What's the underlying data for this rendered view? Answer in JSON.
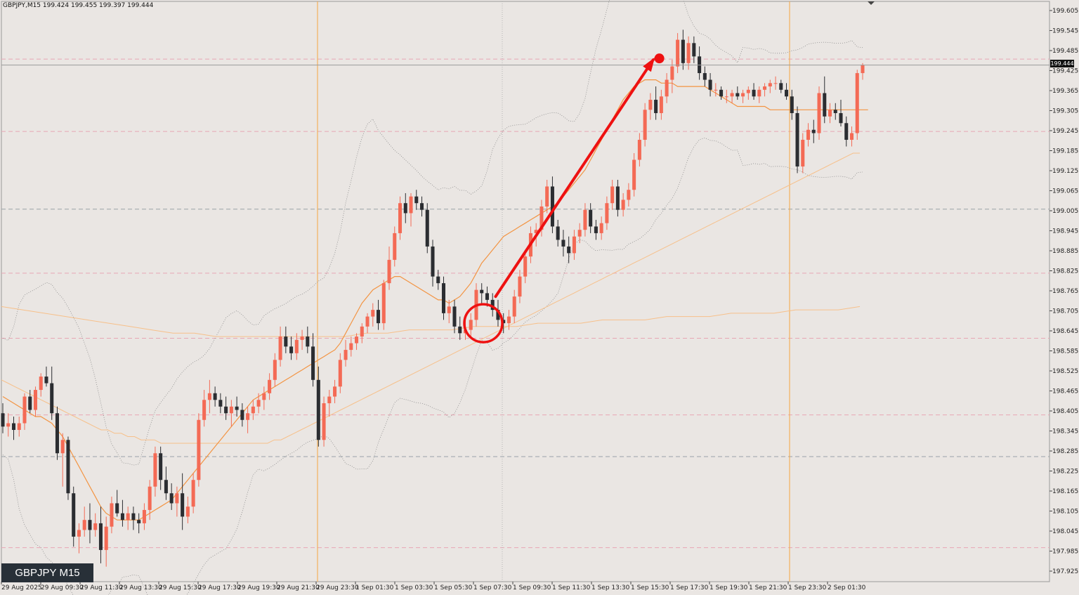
{
  "header": {
    "info": "GBPJPY,M15  199.424 199.455 199.397 199.444"
  },
  "badge": {
    "label": "GBPJPY M15"
  },
  "current_price": {
    "label": "199.444",
    "value": 199.444
  },
  "colors": {
    "background": "#eae6e3",
    "bull": "#f46a55",
    "bear": "#2b2d31",
    "ma_fast": "#f39442",
    "ma_slow": "#f7c08a",
    "bands": "#8a8a8a",
    "session_line": "#f5a742",
    "level_pink": "#e7a6b4",
    "level_gray": "#9aa3a8",
    "annotation": "#ee1111"
  },
  "chart_data": {
    "type": "candlestick",
    "symbol": "GBPJPY",
    "timeframe": "M15",
    "ylim": [
      197.895,
      199.635
    ],
    "y_ticks": [
      "199.605",
      "199.545",
      "199.485",
      "199.425",
      "199.365",
      "199.305",
      "199.245",
      "199.185",
      "199.125",
      "199.065",
      "199.005",
      "198.945",
      "198.885",
      "198.825",
      "198.765",
      "198.705",
      "198.645",
      "198.585",
      "198.525",
      "198.465",
      "198.405",
      "198.345",
      "198.285",
      "198.225",
      "198.165",
      "198.105",
      "198.045",
      "197.985",
      "197.925"
    ],
    "x_ticks": [
      "29 Aug 2025",
      "29 Aug 09:30",
      "29 Aug 11:30",
      "29 Aug 13:30",
      "29 Aug 15:30",
      "29 Aug 17:30",
      "29 Aug 19:30",
      "29 Aug 21:30",
      "29 Aug 23:30",
      "1 Sep 01:30",
      "1 Sep 03:30",
      "1 Sep 05:30",
      "1 Sep 07:30",
      "1 Sep 09:30",
      "1 Sep 11:30",
      "1 Sep 13:30",
      "1 Sep 15:30",
      "1 Sep 17:30",
      "1 Sep 19:30",
      "1 Sep 21:30",
      "1 Sep 23:30",
      "2 Sep 01:30"
    ],
    "candles": [
      [
        198.4,
        198.43,
        198.34,
        198.36
      ],
      [
        198.36,
        198.4,
        198.33,
        198.37
      ],
      [
        198.37,
        198.39,
        198.32,
        198.35
      ],
      [
        198.35,
        198.39,
        198.33,
        198.37
      ],
      [
        198.37,
        198.46,
        198.35,
        198.45
      ],
      [
        198.45,
        198.47,
        198.4,
        198.41
      ],
      [
        198.41,
        198.48,
        198.39,
        198.47
      ],
      [
        198.47,
        198.52,
        198.45,
        198.51
      ],
      [
        198.51,
        198.54,
        198.48,
        198.49
      ],
      [
        198.49,
        198.54,
        198.38,
        198.4
      ],
      [
        198.4,
        198.42,
        198.26,
        198.28
      ],
      [
        198.28,
        198.34,
        198.18,
        198.32
      ],
      [
        198.32,
        198.33,
        198.14,
        198.16
      ],
      [
        198.16,
        198.18,
        198.0,
        198.03
      ],
      [
        198.03,
        198.07,
        197.98,
        198.05
      ],
      [
        198.05,
        198.12,
        198.03,
        198.08
      ],
      [
        198.08,
        198.13,
        198.01,
        198.05
      ],
      [
        198.05,
        198.1,
        198.03,
        198.07
      ],
      [
        198.07,
        198.12,
        197.95,
        197.99
      ],
      [
        197.99,
        198.09,
        197.94,
        198.06
      ],
      [
        198.06,
        198.15,
        198.04,
        198.13
      ],
      [
        198.13,
        198.17,
        198.09,
        198.1
      ],
      [
        198.1,
        198.14,
        198.06,
        198.08
      ],
      [
        198.08,
        198.12,
        198.05,
        198.1
      ],
      [
        198.1,
        198.12,
        198.05,
        198.08
      ],
      [
        198.08,
        198.1,
        198.04,
        198.07
      ],
      [
        198.07,
        198.13,
        198.05,
        198.11
      ],
      [
        198.11,
        198.2,
        198.08,
        198.18
      ],
      [
        198.18,
        198.3,
        198.15,
        198.28
      ],
      [
        198.28,
        198.3,
        198.17,
        198.2
      ],
      [
        198.2,
        198.24,
        198.14,
        198.16
      ],
      [
        198.16,
        198.19,
        198.11,
        198.13
      ],
      [
        198.13,
        198.18,
        198.09,
        198.16
      ],
      [
        198.16,
        198.22,
        198.05,
        198.09
      ],
      [
        198.09,
        198.15,
        198.07,
        198.12
      ],
      [
        198.12,
        198.22,
        198.1,
        198.2
      ],
      [
        198.2,
        198.4,
        198.18,
        198.38
      ],
      [
        198.38,
        198.47,
        198.36,
        198.44
      ],
      [
        198.44,
        198.5,
        198.4,
        198.46
      ],
      [
        198.46,
        198.48,
        198.42,
        198.44
      ],
      [
        198.44,
        198.46,
        198.4,
        198.42
      ],
      [
        198.42,
        198.45,
        198.38,
        198.4
      ],
      [
        198.4,
        198.44,
        198.36,
        198.42
      ],
      [
        198.42,
        198.45,
        198.39,
        198.41
      ],
      [
        198.41,
        198.43,
        198.36,
        198.38
      ],
      [
        198.38,
        198.42,
        198.34,
        198.4
      ],
      [
        198.4,
        198.44,
        198.38,
        198.42
      ],
      [
        198.42,
        198.46,
        198.4,
        198.44
      ],
      [
        198.44,
        198.48,
        198.41,
        198.46
      ],
      [
        198.46,
        198.52,
        198.44,
        198.5
      ],
      [
        198.5,
        198.58,
        198.48,
        198.56
      ],
      [
        198.56,
        198.66,
        198.54,
        198.63
      ],
      [
        198.63,
        198.66,
        198.58,
        198.6
      ],
      [
        198.6,
        198.63,
        198.56,
        198.58
      ],
      [
        198.58,
        198.64,
        198.56,
        198.62
      ],
      [
        198.62,
        198.65,
        198.59,
        198.63
      ],
      [
        198.63,
        198.66,
        198.58,
        198.6
      ],
      [
        198.6,
        198.64,
        198.48,
        198.5
      ],
      [
        198.5,
        198.54,
        198.3,
        198.32
      ],
      [
        198.32,
        198.45,
        198.3,
        198.43
      ],
      [
        198.43,
        198.47,
        198.39,
        198.45
      ],
      [
        198.45,
        198.5,
        198.43,
        198.48
      ],
      [
        198.48,
        198.58,
        198.46,
        198.56
      ],
      [
        198.56,
        198.62,
        198.54,
        198.59
      ],
      [
        198.59,
        198.63,
        198.57,
        198.61
      ],
      [
        198.61,
        198.64,
        198.59,
        198.63
      ],
      [
        198.63,
        198.67,
        198.61,
        198.66
      ],
      [
        198.66,
        198.7,
        198.64,
        198.69
      ],
      [
        198.69,
        198.73,
        198.66,
        198.71
      ],
      [
        198.71,
        198.74,
        198.65,
        198.67
      ],
      [
        198.67,
        198.8,
        198.65,
        198.79
      ],
      [
        198.79,
        198.9,
        198.77,
        198.86
      ],
      [
        198.86,
        198.96,
        198.84,
        198.94
      ],
      [
        198.94,
        199.05,
        198.92,
        199.03
      ],
      [
        199.03,
        199.06,
        198.97,
        199.0
      ],
      [
        199.0,
        199.06,
        198.96,
        199.05
      ],
      [
        199.05,
        199.07,
        199.01,
        199.03
      ],
      [
        199.03,
        199.05,
        198.99,
        199.01
      ],
      [
        199.01,
        199.03,
        198.88,
        198.9
      ],
      [
        198.9,
        198.92,
        198.78,
        198.81
      ],
      [
        198.81,
        198.83,
        198.77,
        198.79
      ],
      [
        198.79,
        198.81,
        198.68,
        198.7
      ],
      [
        198.7,
        198.74,
        198.67,
        198.72
      ],
      [
        198.72,
        198.74,
        198.64,
        198.66
      ],
      [
        198.66,
        198.69,
        198.62,
        198.64
      ],
      [
        198.64,
        198.68,
        198.62,
        198.65
      ],
      [
        198.65,
        198.7,
        198.63,
        198.68
      ],
      [
        198.68,
        198.79,
        198.66,
        198.77
      ],
      [
        198.77,
        198.79,
        198.73,
        198.76
      ],
      [
        198.76,
        198.78,
        198.72,
        198.74
      ],
      [
        198.74,
        198.76,
        198.69,
        198.71
      ],
      [
        198.71,
        198.74,
        198.66,
        198.68
      ],
      [
        198.68,
        198.7,
        198.64,
        198.67
      ],
      [
        198.67,
        198.71,
        198.65,
        198.69
      ],
      [
        198.69,
        198.77,
        198.67,
        198.75
      ],
      [
        198.75,
        198.83,
        198.73,
        198.81
      ],
      [
        198.81,
        198.89,
        198.79,
        198.87
      ],
      [
        198.87,
        198.96,
        198.85,
        198.94
      ],
      [
        198.94,
        198.97,
        198.9,
        198.95
      ],
      [
        198.95,
        199.04,
        198.93,
        199.02
      ],
      [
        199.02,
        199.1,
        199.0,
        199.08
      ],
      [
        199.08,
        199.11,
        198.94,
        198.96
      ],
      [
        198.96,
        198.98,
        198.9,
        198.92
      ],
      [
        198.92,
        198.95,
        198.87,
        198.9
      ],
      [
        198.9,
        198.93,
        198.85,
        198.88
      ],
      [
        198.88,
        198.95,
        198.86,
        198.93
      ],
      [
        198.93,
        198.97,
        198.91,
        198.95
      ],
      [
        198.95,
        199.03,
        198.93,
        199.01
      ],
      [
        199.01,
        199.03,
        198.94,
        198.96
      ],
      [
        198.96,
        198.98,
        198.92,
        198.94
      ],
      [
        198.94,
        198.99,
        198.92,
        198.97
      ],
      [
        198.97,
        199.05,
        198.95,
        199.03
      ],
      [
        199.03,
        199.1,
        199.01,
        199.08
      ],
      [
        199.08,
        199.1,
        198.99,
        199.01
      ],
      [
        199.01,
        199.06,
        198.99,
        199.04
      ],
      [
        199.04,
        199.09,
        199.02,
        199.07
      ],
      [
        199.07,
        199.18,
        199.05,
        199.16
      ],
      [
        199.16,
        199.24,
        199.14,
        199.22
      ],
      [
        199.22,
        199.33,
        199.2,
        199.31
      ],
      [
        199.31,
        199.36,
        199.28,
        199.34
      ],
      [
        199.34,
        199.38,
        199.28,
        199.3
      ],
      [
        199.3,
        199.37,
        199.28,
        199.35
      ],
      [
        199.35,
        199.42,
        199.33,
        199.4
      ],
      [
        199.4,
        199.46,
        199.36,
        199.44
      ],
      [
        199.44,
        199.54,
        199.42,
        199.52
      ],
      [
        199.52,
        199.55,
        199.43,
        199.45
      ],
      [
        199.45,
        199.53,
        199.43,
        199.51
      ],
      [
        199.51,
        199.53,
        199.45,
        199.47
      ],
      [
        199.47,
        199.5,
        199.4,
        199.42
      ],
      [
        199.42,
        199.44,
        199.38,
        199.4
      ],
      [
        199.4,
        199.42,
        199.35,
        199.37
      ],
      [
        199.37,
        199.39,
        199.35,
        199.37
      ],
      [
        199.37,
        199.38,
        199.34,
        199.35
      ],
      [
        199.35,
        199.37,
        199.33,
        199.35
      ],
      [
        199.35,
        199.37,
        199.33,
        199.36
      ],
      [
        199.36,
        199.38,
        199.34,
        199.35
      ],
      [
        199.35,
        199.37,
        199.33,
        199.36
      ],
      [
        199.36,
        199.38,
        199.34,
        199.37
      ],
      [
        199.37,
        199.39,
        199.34,
        199.35
      ],
      [
        199.35,
        199.38,
        199.33,
        199.37
      ],
      [
        199.37,
        199.39,
        199.35,
        199.38
      ],
      [
        199.38,
        199.4,
        199.36,
        199.39
      ],
      [
        199.39,
        199.41,
        199.37,
        199.39
      ],
      [
        199.39,
        199.4,
        199.36,
        199.37
      ],
      [
        199.37,
        199.39,
        199.34,
        199.35
      ],
      [
        199.35,
        199.37,
        199.28,
        199.3
      ],
      [
        199.3,
        199.32,
        199.12,
        199.14
      ],
      [
        199.14,
        199.24,
        199.12,
        199.22
      ],
      [
        199.22,
        199.27,
        199.2,
        199.25
      ],
      [
        199.25,
        199.28,
        199.21,
        199.24
      ],
      [
        199.24,
        199.38,
        199.22,
        199.36
      ],
      [
        199.36,
        199.41,
        199.27,
        199.29
      ],
      [
        199.29,
        199.33,
        199.27,
        199.31
      ],
      [
        199.31,
        199.33,
        199.28,
        199.3
      ],
      [
        199.3,
        199.34,
        199.26,
        199.27
      ],
      [
        199.27,
        199.29,
        199.2,
        199.22
      ],
      [
        199.22,
        199.26,
        199.2,
        199.24
      ],
      [
        199.24,
        199.43,
        199.22,
        199.42
      ],
      [
        199.42,
        199.45,
        199.4,
        199.444
      ]
    ],
    "ma_fast": [
      198.45,
      198.44,
      198.43,
      198.42,
      198.41,
      198.4,
      198.39,
      198.39,
      198.38,
      198.37,
      198.35,
      198.33,
      198.3,
      198.27,
      198.24,
      198.21,
      198.18,
      198.15,
      198.12,
      198.1,
      198.09,
      198.08,
      198.08,
      198.08,
      198.08,
      198.08,
      198.09,
      198.1,
      198.11,
      198.12,
      198.13,
      198.14,
      198.16,
      198.18,
      198.2,
      198.22,
      198.24,
      198.26,
      198.28,
      198.3,
      198.32,
      198.34,
      198.36,
      198.38,
      198.4,
      198.42,
      198.44,
      198.45,
      198.46,
      198.47,
      198.48,
      198.49,
      198.5,
      198.51,
      198.52,
      198.53,
      198.54,
      198.55,
      198.56,
      198.57,
      198.58,
      198.59,
      198.61,
      198.64,
      198.67,
      198.7,
      198.73,
      198.75,
      198.77,
      198.78,
      198.79,
      198.8,
      198.81,
      198.81,
      198.8,
      198.79,
      198.78,
      198.77,
      198.76,
      198.75,
      198.74,
      198.74,
      198.73,
      198.74,
      198.75,
      198.77,
      198.79,
      198.82,
      198.85,
      198.87,
      198.89,
      198.91,
      198.93,
      198.94,
      198.95,
      198.96,
      198.97,
      198.98,
      198.99,
      199.0,
      199.01,
      199.02,
      199.03,
      199.05,
      199.07,
      199.09,
      199.11,
      199.13,
      199.16,
      199.19,
      199.22,
      199.25,
      199.28,
      199.31,
      199.34,
      199.36,
      199.38,
      199.39,
      199.4,
      199.4,
      199.4,
      199.39,
      199.39,
      199.39,
      199.38,
      199.38,
      199.38,
      199.38,
      199.38,
      199.38,
      199.37,
      199.36,
      199.35,
      199.34,
      199.33,
      199.32,
      199.32,
      199.32,
      199.32,
      199.32,
      199.32,
      199.31,
      199.31,
      199.31,
      199.31,
      199.31,
      199.31,
      199.31,
      199.31,
      199.31,
      199.31,
      199.31,
      199.31,
      199.31,
      199.31,
      199.31,
      199.31,
      199.31,
      199.31,
      199.31
    ],
    "ma_slow": [
      198.5,
      198.49,
      198.48,
      198.47,
      198.46,
      198.45,
      198.44,
      198.43,
      198.42,
      198.41,
      198.4,
      198.39,
      198.38,
      198.37,
      198.36,
      198.35,
      198.35,
      198.34,
      198.34,
      198.33,
      198.33,
      198.32,
      198.32,
      198.32,
      198.31,
      198.31,
      198.31,
      198.31,
      198.31,
      198.31,
      198.31,
      198.31,
      198.31,
      198.31,
      198.31,
      198.31,
      198.31,
      198.31,
      198.31,
      198.31,
      198.31,
      198.32,
      198.32,
      198.33,
      198.34,
      198.35,
      198.36,
      198.37,
      198.38,
      198.39,
      198.4,
      198.41,
      198.42,
      198.43,
      198.44,
      198.45,
      198.46,
      198.47,
      198.48,
      198.49,
      198.5,
      198.51,
      198.52,
      198.53,
      198.54,
      198.55,
      198.56,
      198.57,
      198.58,
      198.59,
      198.6,
      198.61,
      198.62,
      198.63,
      198.64,
      198.65,
      198.66,
      198.67,
      198.68,
      198.69,
      198.7,
      198.71,
      198.72,
      198.73,
      198.74,
      198.75,
      198.76,
      198.77,
      198.78,
      198.79,
      198.8,
      198.81,
      198.82,
      198.83,
      198.84,
      198.85,
      198.86,
      198.87,
      198.88,
      198.89,
      198.9,
      198.91,
      198.92,
      198.93,
      198.94,
      198.95,
      198.96,
      198.97,
      198.98,
      198.99,
      199.0,
      199.01,
      199.02,
      199.03,
      199.04,
      199.05,
      199.06,
      199.07,
      199.08,
      199.09,
      199.1,
      199.11,
      199.12,
      199.13,
      199.14,
      199.15,
      199.16,
      199.17,
      199.18,
      199.18
    ],
    "ma_long": [
      198.72,
      198.71,
      198.7,
      198.69,
      198.68,
      198.67,
      198.66,
      198.65,
      198.64,
      198.64,
      198.63,
      198.63,
      198.63,
      198.63,
      198.63,
      198.63,
      198.63,
      198.64,
      198.64,
      198.65,
      198.65,
      198.65,
      198.66,
      198.66,
      198.66,
      198.67,
      198.67,
      198.67,
      198.68,
      198.68,
      198.68,
      198.69,
      198.69,
      198.69,
      198.7,
      198.7,
      198.7,
      198.71,
      198.71,
      198.71,
      198.72
    ],
    "levels": [
      {
        "price": 199.462,
        "style": "pink"
      },
      {
        "price": 199.245,
        "style": "pink"
      },
      {
        "price": 199.012,
        "style": "gray"
      },
      {
        "price": 198.82,
        "style": "pink"
      },
      {
        "price": 198.625,
        "style": "pink"
      },
      {
        "price": 198.395,
        "style": "pink"
      },
      {
        "price": 198.27,
        "style": "gray"
      },
      {
        "price": 197.997,
        "style": "pink"
      }
    ],
    "current_price": 199.444,
    "session_lines": [
      "29 Aug 23:30",
      "1 Sep 23:30"
    ],
    "annotations": [
      {
        "type": "circle",
        "x_index": 87,
        "y": 198.67
      },
      {
        "type": "arrow",
        "from_index": 89,
        "from_y": 198.75,
        "to_index": 119,
        "to_y": 199.46
      },
      {
        "type": "dot",
        "x_index": 120,
        "y": 199.464
      }
    ]
  }
}
